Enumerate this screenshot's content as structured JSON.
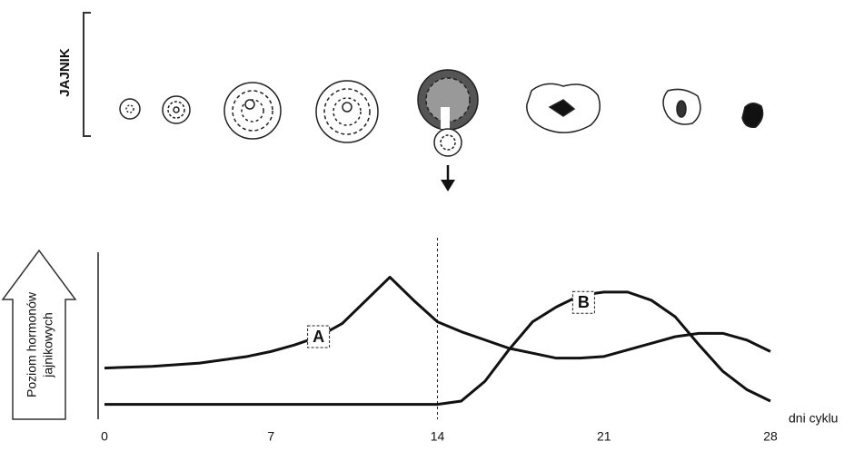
{
  "chart_data": {
    "type": "line",
    "ovary_label": "JAJNIK",
    "x_label": "dni cyklu",
    "y_label": [
      "Poziom hormonów",
      "jajnikowych"
    ],
    "x": [
      0,
      2,
      4,
      6,
      7,
      8,
      9,
      10,
      11,
      12,
      13,
      14,
      15,
      16,
      17,
      18,
      19,
      20,
      21,
      22,
      23,
      24,
      25,
      26,
      27,
      28
    ],
    "series": [
      {
        "name": "A",
        "color": "#111111",
        "values": [
          31,
          32,
          34,
          38,
          41,
          45,
          50,
          58,
          72,
          86,
          72,
          59,
          53,
          48,
          43,
          40,
          37,
          37,
          38,
          42,
          46,
          50,
          52,
          52,
          48,
          41
        ]
      },
      {
        "name": "B",
        "color": "#111111",
        "values": [
          9,
          9,
          9,
          9,
          9,
          9,
          9,
          9,
          9,
          9,
          9,
          9,
          11,
          23,
          42,
          59,
          68,
          75,
          77,
          77,
          72,
          62,
          45,
          29,
          18,
          11
        ]
      }
    ],
    "xlim": [
      0,
      28
    ],
    "xticks": [
      0,
      7,
      14,
      21,
      28
    ],
    "ylim": [
      0,
      100
    ],
    "vline": 14
  }
}
